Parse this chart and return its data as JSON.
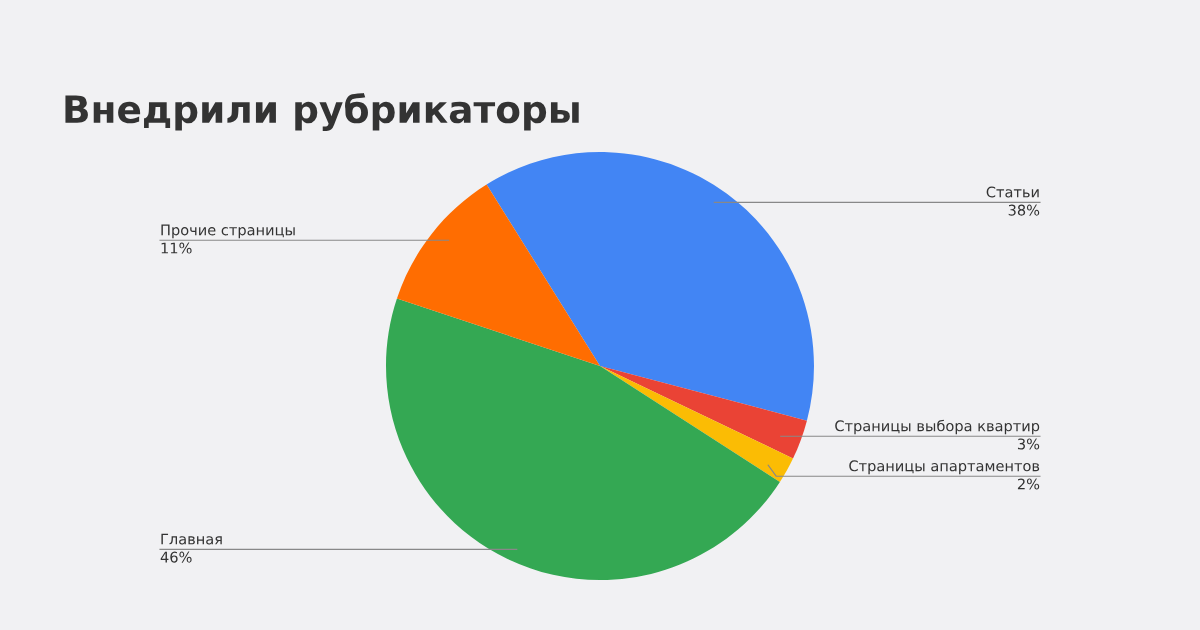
{
  "chart_data": {
    "type": "pie",
    "title": "Внедрили рубрикаторы",
    "categories": [
      "Статьи",
      "Страницы выбора квартир",
      "Страницы апартаментов",
      "Главная",
      "Прочие страницы"
    ],
    "values": [
      38,
      3,
      2,
      46,
      11
    ],
    "value_labels": [
      "38%",
      "3%",
      "2%",
      "46%",
      "11%"
    ],
    "colors": [
      "#4285f4",
      "#ea4335",
      "#fbbc04",
      "#34a853",
      "#ff6d01"
    ]
  }
}
